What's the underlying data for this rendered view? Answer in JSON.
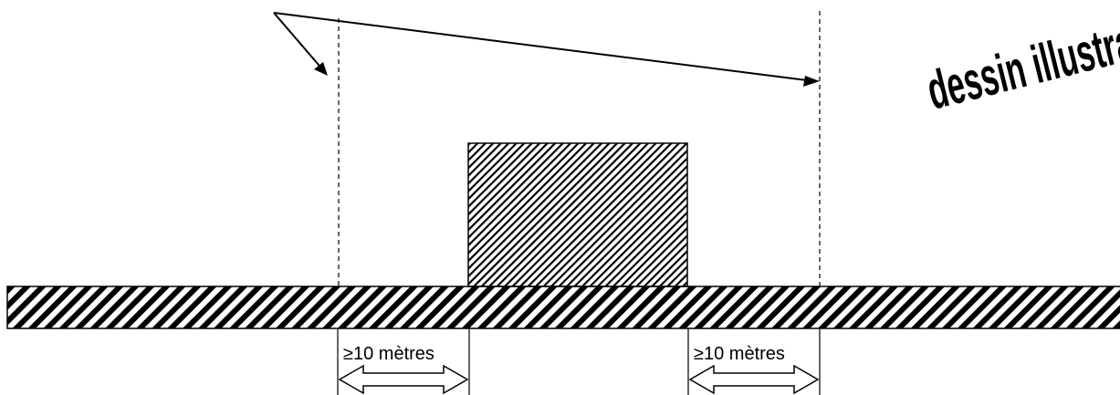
{
  "diagram": {
    "watermark_text": "dessin illustratif",
    "left_distance_label": "≥10 mètres",
    "right_distance_label": "≥10 mètres"
  },
  "colors": {
    "ink": "#000000",
    "background": "#ffffff"
  },
  "icons": {
    "arrowheads": "arrow-head-icon",
    "double_arrows": "double-arrow-icon"
  }
}
